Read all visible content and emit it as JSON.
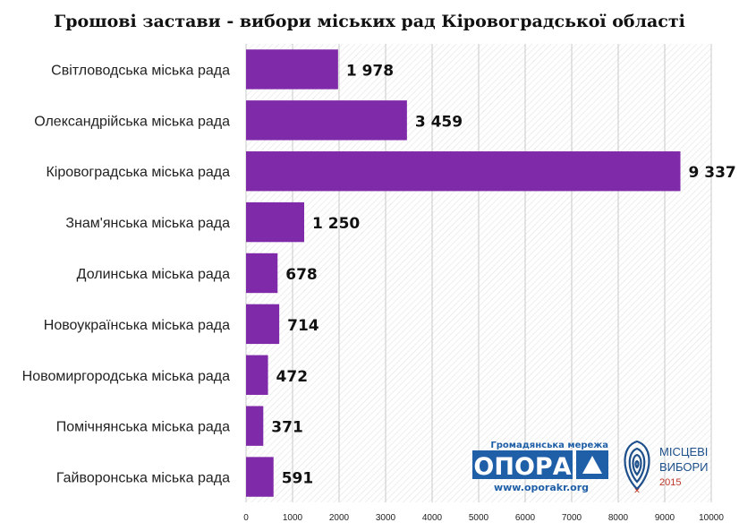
{
  "chart_data": {
    "type": "bar",
    "orientation": "horizontal",
    "title": "Грошові застави - вибори міських рад Кіровоградської області",
    "categories": [
      "Світловодська міська рада",
      "Олександрійська міська рада",
      "Кіровоградська міська рада",
      "Знам'янська міська рада",
      "Долинська міська рада",
      "Новоукраїнська міська рада",
      "Новомиргородська міська рада",
      "Помічнянська міська рада",
      "Гайворонська міська рада"
    ],
    "values": [
      1978,
      3459,
      9337,
      1250,
      678,
      714,
      472,
      371,
      591
    ],
    "value_labels": [
      "1 978",
      "3 459",
      "9 337",
      "1 250",
      "678",
      "714",
      "472",
      "371",
      "591"
    ],
    "xlim": [
      0,
      10000
    ],
    "xticks": [
      0,
      1000,
      2000,
      3000,
      4000,
      5000,
      6000,
      7000,
      8000,
      9000,
      10000
    ],
    "grid": true,
    "bar_color": "#7f2aa8"
  },
  "logos": {
    "opora": {
      "top_text": "Громадянська мережа",
      "name": "ОПОРА",
      "url": "www.oporakr.org",
      "color": "#1f5fa8"
    },
    "vybory": {
      "line1": "МІСЦЕВІ",
      "line2": "ВИБОРИ",
      "year": "2015"
    }
  }
}
